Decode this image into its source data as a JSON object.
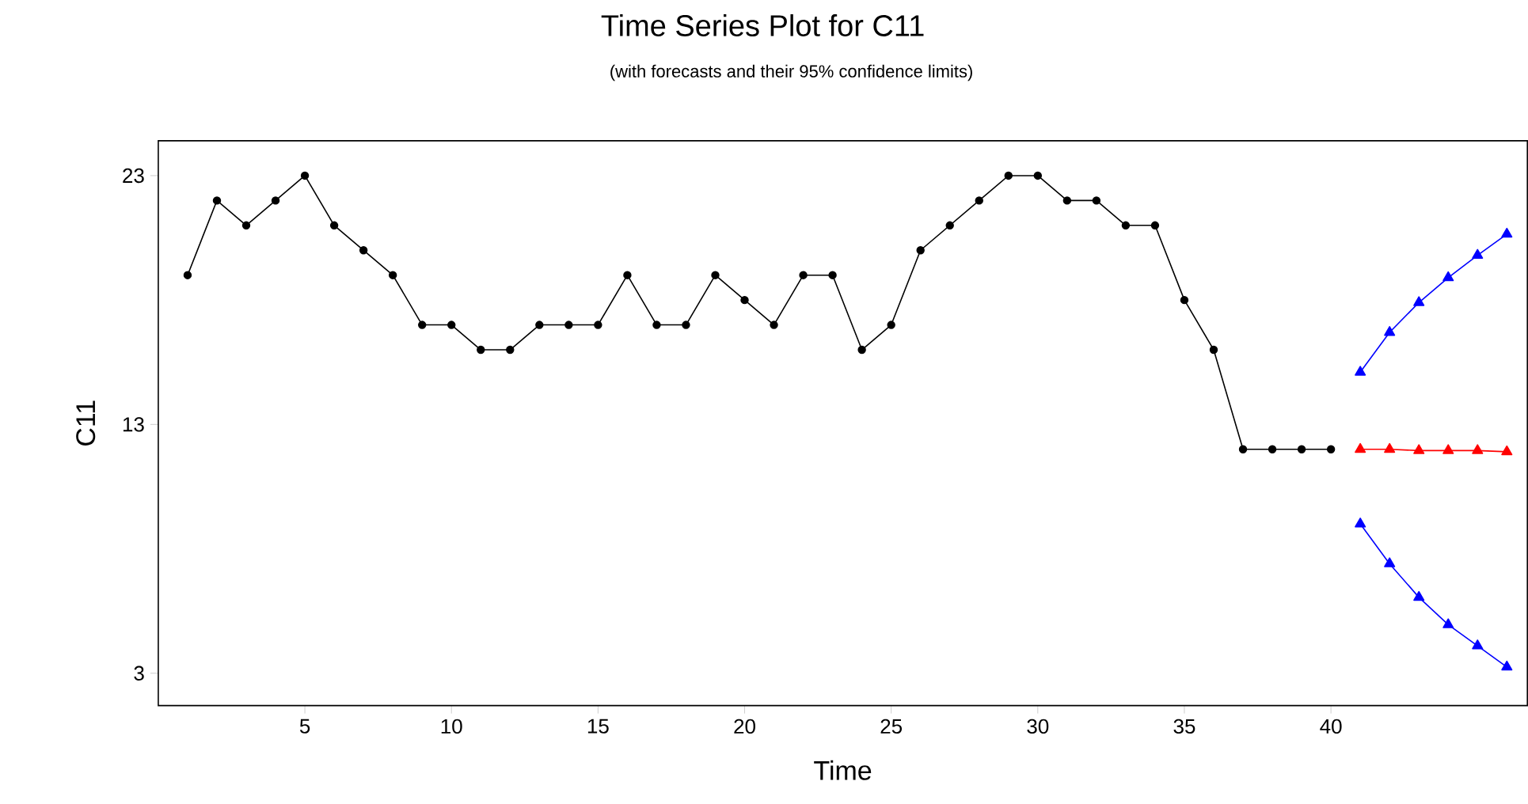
{
  "chart_data": {
    "type": "line",
    "title": "Time Series Plot for C11",
    "subtitle": "(with forecasts and their 95% confidence limits)",
    "xlabel": "Time",
    "ylabel": "C11",
    "xlim": [
      0,
      46.7
    ],
    "ylim": [
      1.7,
      24.4
    ],
    "xticks": [
      5,
      10,
      15,
      20,
      25,
      30,
      35,
      40
    ],
    "yticks": [
      3,
      13,
      23
    ],
    "grid": false,
    "series": [
      {
        "color": "#000000",
        "marker": "circle",
        "x": [
          1,
          2,
          3,
          4,
          5,
          6,
          7,
          8,
          9,
          10,
          11,
          12,
          13,
          14,
          15,
          16,
          17,
          18,
          19,
          20,
          21,
          22,
          23,
          24,
          25,
          26,
          27,
          28,
          29,
          30,
          31,
          32,
          33,
          34,
          35,
          36,
          37,
          38,
          39,
          40
        ],
        "values": [
          19,
          22,
          21,
          22,
          23,
          21,
          20,
          19,
          17,
          17,
          16,
          16,
          17,
          17,
          17,
          19,
          17,
          17,
          19,
          18,
          17,
          19,
          19,
          16,
          17,
          20,
          21,
          22,
          23,
          23,
          22,
          22,
          21,
          21,
          18,
          16,
          12,
          12,
          12,
          12
        ]
      },
      {
        "color": "#ff0000",
        "marker": "triangle",
        "x": [
          41,
          42,
          43,
          44,
          45,
          46
        ],
        "values": [
          12,
          12,
          11.95,
          11.95,
          11.95,
          11.9
        ]
      },
      {
        "color": "#0000ff",
        "marker": "triangle",
        "x": [
          41,
          42,
          43,
          44,
          45,
          46
        ],
        "values": [
          15.1,
          16.7,
          17.9,
          18.9,
          19.8,
          20.65
        ]
      },
      {
        "color": "#0000ff",
        "marker": "triangle",
        "x": [
          41,
          42,
          43,
          44,
          45,
          46
        ],
        "values": [
          9.0,
          7.4,
          6.05,
          4.95,
          4.1,
          3.25
        ]
      }
    ]
  }
}
